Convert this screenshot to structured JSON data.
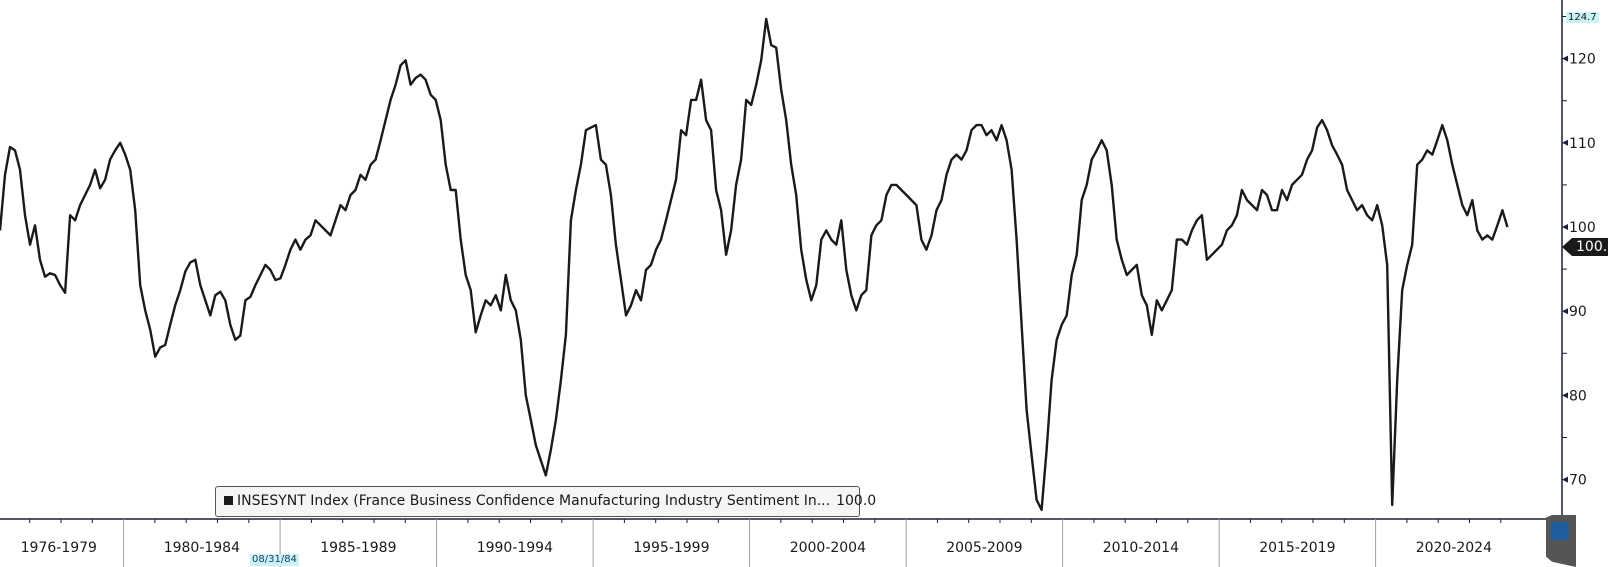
{
  "chart_data": {
    "type": "line",
    "title": "",
    "xlabel": "",
    "ylabel": "",
    "x_start_year": 1976.05,
    "x_step_years": 0.16,
    "ylim": [
      65.5,
      127
    ],
    "xlim": [
      1976,
      2024.8
    ],
    "y_ticks": [
      "70",
      "80",
      "90",
      "100",
      "110",
      "120"
    ],
    "x_tick_labels": [
      "1976-1979",
      "1980-1984",
      "1985-1989",
      "1990-1994",
      "1995-1999",
      "2000-2004",
      "2005-2009",
      "2010-2014",
      "2015-2019",
      "2020-2024"
    ],
    "grid": false,
    "legend_position": "bottom-left",
    "series": [
      {
        "name": "INSESYNT Index (France Business Confidence Manufacturing Industry Sentiment In...",
        "last_value": "100.0",
        "color": "#1a1a1a",
        "values": [
          99.6,
          106.2,
          109.5,
          109.1,
          106.8,
          101.4,
          97.9,
          100.2,
          96.1,
          94.1,
          94.5,
          94.3,
          93.1,
          92.2,
          101.4,
          100.8,
          102.6,
          103.8,
          105.0,
          106.8,
          104.6,
          105.6,
          108.0,
          109.1,
          110.0,
          108.6,
          106.8,
          102.0,
          93.1,
          90.1,
          87.8,
          84.6,
          85.7,
          86.0,
          88.4,
          90.7,
          92.5,
          94.7,
          95.8,
          96.1,
          93.1,
          91.3,
          89.5,
          91.9,
          92.3,
          91.3,
          88.4,
          86.6,
          87.1,
          91.3,
          91.7,
          93.1,
          94.3,
          95.5,
          94.9,
          93.7,
          93.9,
          95.5,
          97.3,
          98.5,
          97.3,
          98.5,
          99.0,
          100.8,
          100.2,
          99.6,
          99.0,
          100.8,
          102.6,
          102.0,
          103.8,
          104.4,
          106.2,
          105.6,
          107.4,
          108.0,
          110.3,
          112.7,
          115.1,
          116.9,
          119.2,
          119.8,
          116.9,
          117.7,
          118.1,
          117.5,
          115.7,
          115.1,
          112.7,
          107.4,
          104.4,
          104.4,
          98.5,
          94.3,
          92.5,
          87.5,
          89.5,
          91.3,
          90.7,
          91.9,
          90.1,
          94.3,
          91.3,
          90.1,
          86.6,
          80.0,
          77.1,
          74.1,
          72.3,
          70.5,
          73.5,
          77.1,
          81.8,
          87.2,
          100.8,
          104.4,
          107.4,
          111.5,
          111.8,
          112.1,
          108.0,
          107.4,
          103.8,
          97.9,
          93.7,
          89.5,
          90.7,
          92.5,
          91.3,
          94.9,
          95.5,
          97.3,
          98.5,
          100.8,
          103.2,
          105.6,
          111.5,
          110.9,
          115.1,
          115.1,
          117.5,
          112.7,
          111.5,
          104.4,
          102.0,
          96.7,
          99.6,
          105.0,
          108.0,
          115.1,
          114.5,
          116.9,
          119.8,
          124.7,
          121.6,
          121.3,
          116.3,
          112.7,
          107.4,
          103.8,
          97.3,
          93.7,
          91.3,
          93.1,
          98.5,
          99.6,
          98.5,
          97.9,
          100.8,
          94.9,
          91.9,
          90.1,
          91.9,
          92.5,
          99.0,
          100.2,
          100.8,
          103.8,
          105.0,
          105.0,
          104.4,
          103.8,
          103.2,
          102.6,
          98.5,
          97.3,
          99.0,
          102.0,
          103.2,
          106.2,
          108.0,
          108.6,
          108.0,
          109.1,
          111.5,
          112.1,
          112.1,
          110.9,
          111.5,
          110.3,
          112.1,
          110.3,
          106.8,
          98.5,
          88.4,
          78.3,
          72.9,
          67.6,
          66.4,
          73.5,
          81.8,
          86.6,
          88.4,
          89.5,
          94.3,
          96.7,
          103.2,
          105.0,
          108.0,
          109.1,
          110.3,
          109.1,
          105.0,
          98.5,
          96.1,
          94.3,
          94.9,
          95.5,
          91.9,
          90.7,
          87.2,
          91.3,
          90.1,
          91.3,
          92.5,
          98.5,
          98.5,
          97.9,
          99.6,
          100.8,
          101.4,
          96.1,
          96.7,
          97.3,
          97.9,
          99.6,
          100.2,
          101.4,
          104.4,
          103.2,
          102.6,
          102.0,
          104.4,
          103.8,
          102.0,
          102.0,
          104.4,
          103.2,
          105.0,
          105.6,
          106.2,
          108.0,
          109.1,
          111.8,
          112.7,
          111.5,
          109.7,
          108.6,
          107.4,
          104.4,
          103.2,
          102.0,
          102.6,
          101.4,
          100.8,
          102.6,
          100.2,
          95.5,
          67.0,
          81.8,
          92.5,
          95.5,
          97.9,
          107.4,
          108.0,
          109.1,
          108.6,
          110.3,
          112.1,
          110.3,
          107.4,
          105.0,
          102.6,
          101.4,
          103.2,
          99.6,
          98.5,
          99.0,
          98.5,
          100.2,
          102.0,
          100.0
        ]
      }
    ]
  },
  "labels": {
    "max_value": "124.7",
    "last_value": "100.0",
    "cursor_date": "08/31/84",
    "legend_text": "INSESYNT Index (France Business Confidence Manufacturing Industry Sentiment In...",
    "legend_value": "100.0"
  }
}
